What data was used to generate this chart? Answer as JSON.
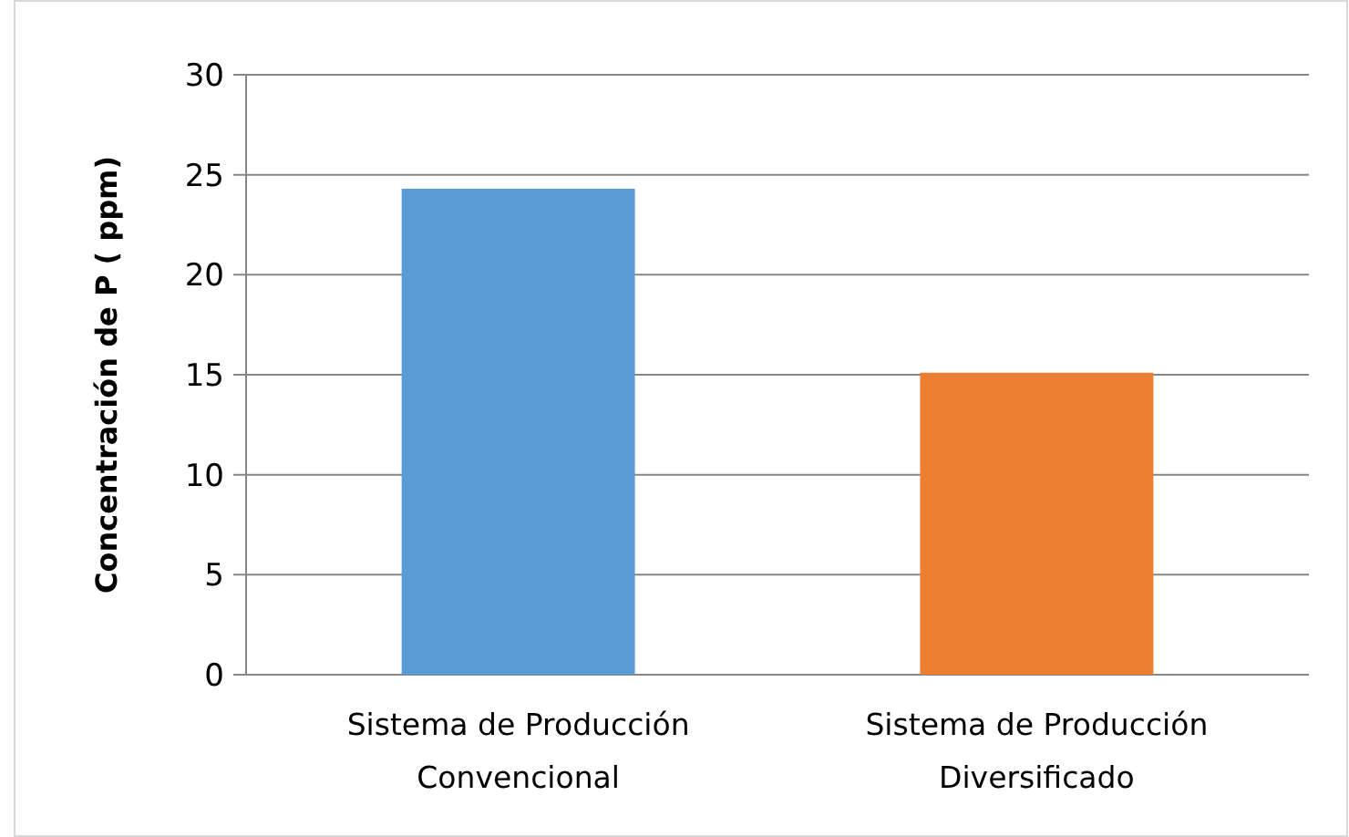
{
  "chart_data": {
    "type": "bar",
    "ylabel": "Concentración de P ( ppm)",
    "categories": [
      "Sistema de Producción Convencional",
      "Sistema de Producción Diversificado"
    ],
    "values": [
      24.3,
      15.1
    ],
    "colors": [
      "#5b9bd5",
      "#ed7d31"
    ],
    "ylim": [
      0,
      30
    ],
    "yticks": [
      0,
      5,
      10,
      15,
      20,
      25,
      30
    ],
    "grid": "y"
  }
}
